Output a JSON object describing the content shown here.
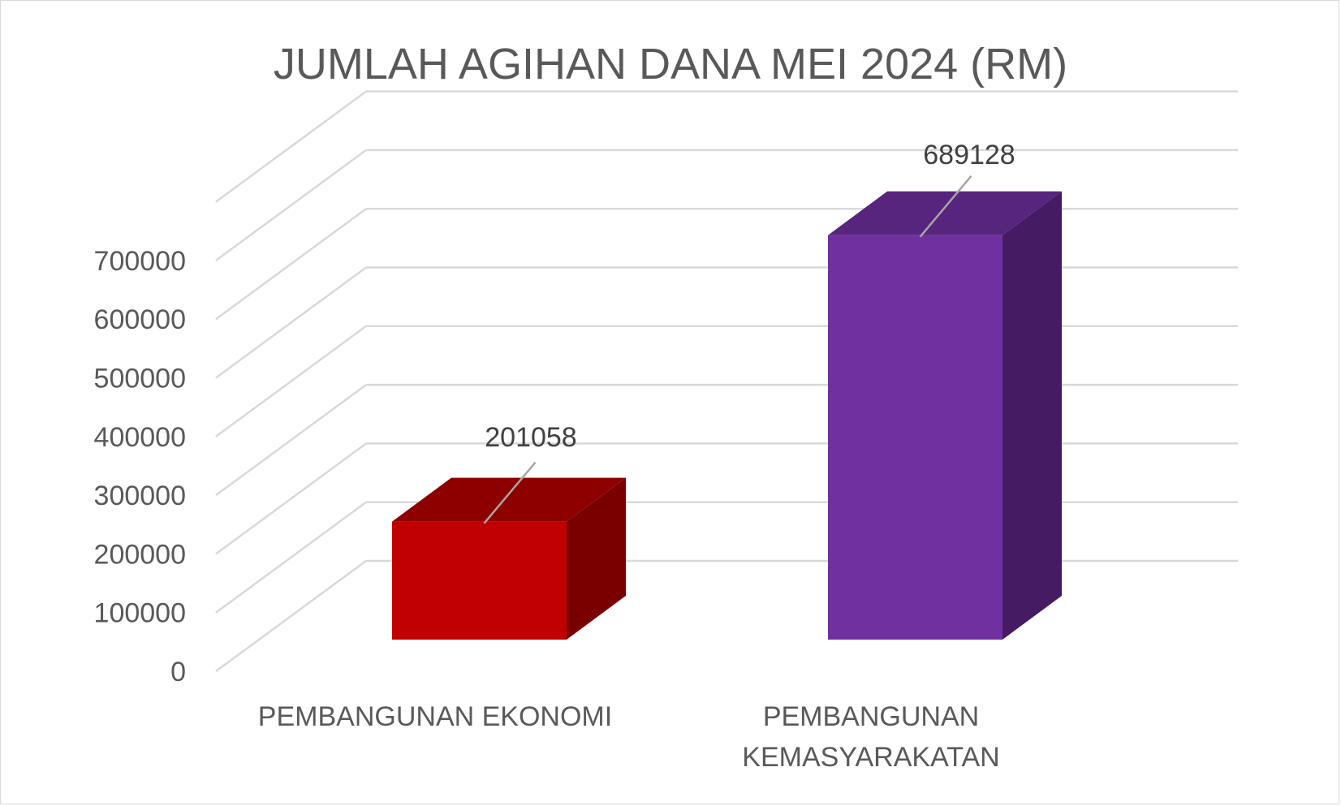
{
  "chart_data": {
    "type": "bar",
    "title": "JUMLAH AGIHAN DANA MEI 2024 (RM)",
    "categories": [
      "PEMBANGUNAN EKONOMI",
      "PEMBANGUNAN KEMASYARAKATAN"
    ],
    "category_lines": [
      [
        "PEMBANGUNAN EKONOMI"
      ],
      [
        "PEMBANGUNAN",
        "KEMASYARAKATAN"
      ]
    ],
    "values": [
      201058,
      689128
    ],
    "data_labels": [
      "201058",
      "689128"
    ],
    "y_ticks": [
      0,
      100000,
      200000,
      300000,
      400000,
      500000,
      600000,
      700000
    ],
    "y_tick_labels": [
      "0",
      "100000",
      "200000",
      "300000",
      "400000",
      "500000",
      "600000",
      "700000"
    ],
    "ylim": [
      0,
      700000
    ],
    "xlabel": "",
    "ylabel": "",
    "grid": true,
    "legend": "none",
    "style_3d": true,
    "colors": {
      "bars": [
        {
          "front": "#c00000",
          "top": "#8e0000",
          "side": "#7a0000"
        },
        {
          "front": "#7030a0",
          "top": "#58257e",
          "side": "#451c63"
        }
      ],
      "grid": "#d9d9d9",
      "text": "#595959",
      "label_text": "#404040",
      "leader_line": "#a6a6a6"
    }
  }
}
